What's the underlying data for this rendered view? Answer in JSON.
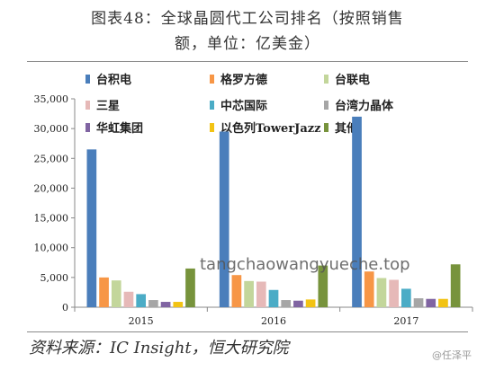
{
  "header": {
    "title_line1": "图表48：全球晶圆代工公司排名（按照销售",
    "title_line2": "额，单位：亿美金）"
  },
  "source_text": "资料来源：IC Insight，恒大研究院",
  "watermark_text": "tangchaowangyueche.top",
  "weibo_text": "@任泽平",
  "chart_data": {
    "type": "bar",
    "categories": [
      "2015",
      "2016",
      "2017"
    ],
    "ylim": [
      0,
      35000
    ],
    "yticks": [
      "0",
      "5,000",
      "10,000",
      "15,000",
      "20,000",
      "25,000",
      "30,000",
      "35,000"
    ],
    "grid": false,
    "legend_position": "top",
    "series": [
      {
        "name": "台积电",
        "color": "#4a7ebb",
        "values": [
          26500,
          29500,
          32000
        ]
      },
      {
        "name": "格罗方德",
        "color": "#f79646",
        "values": [
          5000,
          5400,
          6000
        ]
      },
      {
        "name": "台联电",
        "color": "#c3d69b",
        "values": [
          4500,
          4400,
          4900
        ]
      },
      {
        "name": "三星",
        "color": "#e6b9b8",
        "values": [
          2600,
          4300,
          4600
        ]
      },
      {
        "name": "中芯国际",
        "color": "#4bacc6",
        "values": [
          2200,
          2900,
          3100
        ]
      },
      {
        "name": "台湾力晶体",
        "color": "#a6a6a6",
        "values": [
          1200,
          1200,
          1500
        ]
      },
      {
        "name": "华虹集团",
        "color": "#8064a2",
        "values": [
          900,
          1100,
          1400
        ]
      },
      {
        "name": "以色列TowerJazz",
        "color": "#f2c314",
        "values": [
          900,
          1300,
          1400
        ]
      },
      {
        "name": "其他",
        "color": "#77933c",
        "values": [
          6500,
          7000,
          7200
        ]
      }
    ]
  }
}
